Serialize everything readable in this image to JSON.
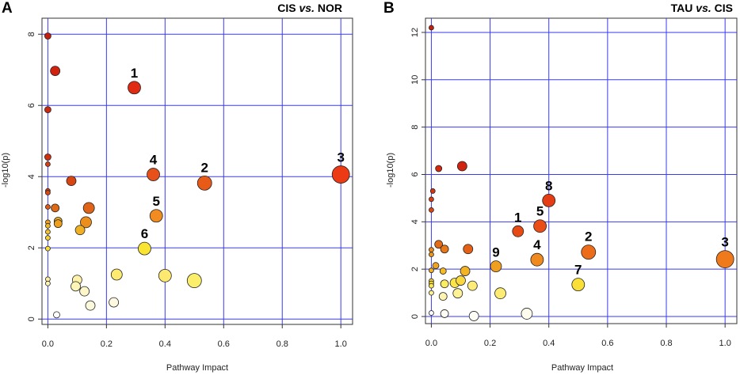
{
  "chart_data": [
    {
      "type": "scatter",
      "panel": "A",
      "title": {
        "left": "CIS",
        "mid": "vs.",
        "right": "NOR"
      },
      "xlabel": "Pathway Impact",
      "ylabel": "-log10(p)",
      "xlim": [
        -0.02,
        1.04
      ],
      "ylim": [
        -0.15,
        8.45
      ],
      "xticks": [
        0.0,
        0.2,
        0.4,
        0.6,
        0.8,
        1.0
      ],
      "xtick_labels": [
        "0.0",
        "0.2",
        "0.4",
        "0.6",
        "0.8",
        "1.0"
      ],
      "yticks": [
        0,
        2,
        4,
        6,
        8
      ],
      "ytick_labels": [
        "0",
        "2",
        "4",
        "6",
        "8"
      ],
      "grid": true,
      "points": [
        {
          "x": 0.0,
          "y": 7.95,
          "size": 4,
          "color": "#c81e0e"
        },
        {
          "x": 0.025,
          "y": 6.97,
          "size": 6,
          "color": "#d1220f"
        },
        {
          "x": 0.0,
          "y": 5.88,
          "size": 4,
          "color": "#cc2a10"
        },
        {
          "x": 0.0,
          "y": 4.55,
          "size": 4,
          "color": "#d1300f"
        },
        {
          "x": 0.0,
          "y": 4.35,
          "size": 3,
          "color": "#d6400f"
        },
        {
          "x": 0.0,
          "y": 3.6,
          "size": 3,
          "color": "#d8440f"
        },
        {
          "x": 0.0,
          "y": 3.55,
          "size": 3,
          "color": "#d84a10"
        },
        {
          "x": 0.0,
          "y": 3.15,
          "size": 3,
          "color": "#e05a10"
        },
        {
          "x": 0.025,
          "y": 3.12,
          "size": 5,
          "color": "#e06a14"
        },
        {
          "x": 0.08,
          "y": 3.88,
          "size": 6,
          "color": "#d84412"
        },
        {
          "x": 0.14,
          "y": 3.12,
          "size": 7,
          "color": "#e06418"
        },
        {
          "x": 0.035,
          "y": 2.75,
          "size": 5,
          "color": "#f0b020"
        },
        {
          "x": 0.035,
          "y": 2.68,
          "size": 5,
          "color": "#eea01c"
        },
        {
          "x": 0.0,
          "y": 2.72,
          "size": 3,
          "color": "#eea01c"
        },
        {
          "x": 0.0,
          "y": 2.62,
          "size": 3,
          "color": "#f2b822"
        },
        {
          "x": 0.0,
          "y": 2.45,
          "size": 3,
          "color": "#f5c426"
        },
        {
          "x": 0.0,
          "y": 2.28,
          "size": 3,
          "color": "#f8d22a"
        },
        {
          "x": 0.0,
          "y": 1.98,
          "size": 3,
          "color": "#fae032"
        },
        {
          "x": 0.13,
          "y": 2.72,
          "size": 7,
          "color": "#eb8e1c"
        },
        {
          "x": 0.11,
          "y": 2.5,
          "size": 6,
          "color": "#f0b024"
        },
        {
          "x": 0.0,
          "y": 1.12,
          "size": 3,
          "color": "#fef0a0"
        },
        {
          "x": 0.0,
          "y": 1.0,
          "size": 3,
          "color": "#fef4b4"
        },
        {
          "x": 0.1,
          "y": 1.1,
          "size": 6,
          "color": "#fef2a8"
        },
        {
          "x": 0.095,
          "y": 0.92,
          "size": 6,
          "color": "#fdf4b8"
        },
        {
          "x": 0.125,
          "y": 0.78,
          "size": 6,
          "color": "#fdf6c8"
        },
        {
          "x": 0.145,
          "y": 0.38,
          "size": 6,
          "color": "#fcf8dc"
        },
        {
          "x": 0.03,
          "y": 0.12,
          "size": 4,
          "color": "#fefefe"
        },
        {
          "x": 0.225,
          "y": 0.47,
          "size": 6,
          "color": "#fdf9e0"
        },
        {
          "x": 0.235,
          "y": 1.25,
          "size": 7,
          "color": "#fdeb70"
        },
        {
          "x": 0.4,
          "y": 1.22,
          "size": 8,
          "color": "#fde870"
        },
        {
          "x": 0.5,
          "y": 1.08,
          "size": 9,
          "color": "#fbee6a"
        },
        {
          "x": 0.295,
          "y": 6.5,
          "size": 8,
          "color": "#e02a12",
          "label": "1"
        },
        {
          "x": 0.535,
          "y": 3.82,
          "size": 9,
          "color": "#e85a18",
          "label": "2"
        },
        {
          "x": 1.0,
          "y": 4.06,
          "size": 11,
          "color": "#ec3a14",
          "label": "3"
        },
        {
          "x": 0.36,
          "y": 4.06,
          "size": 8,
          "color": "#e8501a",
          "label": "4"
        },
        {
          "x": 0.37,
          "y": 2.9,
          "size": 8,
          "color": "#f28c20",
          "label": "5"
        },
        {
          "x": 0.33,
          "y": 1.98,
          "size": 8,
          "color": "#fae432",
          "label": "6"
        }
      ]
    },
    {
      "type": "scatter",
      "panel": "B",
      "title": {
        "left": "TAU",
        "mid": "vs.",
        "right": "CIS"
      },
      "xlabel": "Pathway Impact",
      "ylabel": "-log10(p)",
      "xlim": [
        -0.02,
        1.04
      ],
      "ylim": [
        -0.3,
        12.6
      ],
      "xticks": [
        0.0,
        0.2,
        0.4,
        0.6,
        0.8,
        1.0
      ],
      "xtick_labels": [
        "0.0",
        "0.2",
        "0.4",
        "0.6",
        "0.8",
        "1.0"
      ],
      "yticks": [
        0,
        2,
        4,
        6,
        8,
        10,
        12
      ],
      "ytick_labels": [
        "0",
        "2",
        "4",
        "6",
        "8",
        "10",
        "12"
      ],
      "grid": true,
      "points": [
        {
          "x": 0.0,
          "y": 12.2,
          "size": 3,
          "color": "#c81e0e"
        },
        {
          "x": 0.025,
          "y": 6.25,
          "size": 4,
          "color": "#d4280f"
        },
        {
          "x": 0.105,
          "y": 6.35,
          "size": 6,
          "color": "#d02410"
        },
        {
          "x": 0.005,
          "y": 5.3,
          "size": 3,
          "color": "#d8340f"
        },
        {
          "x": 0.0,
          "y": 4.95,
          "size": 3,
          "color": "#da3c10"
        },
        {
          "x": 0.0,
          "y": 4.5,
          "size": 3,
          "color": "#dc4410"
        },
        {
          "x": 0.025,
          "y": 3.05,
          "size": 5,
          "color": "#e46a16"
        },
        {
          "x": 0.045,
          "y": 2.85,
          "size": 5,
          "color": "#e87818"
        },
        {
          "x": 0.125,
          "y": 2.85,
          "size": 6,
          "color": "#e46016"
        },
        {
          "x": 0.0,
          "y": 2.82,
          "size": 3,
          "color": "#ea8a1a"
        },
        {
          "x": 0.0,
          "y": 2.62,
          "size": 3,
          "color": "#ec961c"
        },
        {
          "x": 0.015,
          "y": 2.15,
          "size": 4,
          "color": "#f0a41e"
        },
        {
          "x": 0.0,
          "y": 1.95,
          "size": 3,
          "color": "#f2b422"
        },
        {
          "x": 0.04,
          "y": 1.92,
          "size": 4,
          "color": "#f4bc24"
        },
        {
          "x": 0.115,
          "y": 1.92,
          "size": 6,
          "color": "#f2b424"
        },
        {
          "x": 0.0,
          "y": 1.5,
          "size": 3,
          "color": "#f8d630"
        },
        {
          "x": 0.0,
          "y": 1.4,
          "size": 3,
          "color": "#fae03a"
        },
        {
          "x": 0.0,
          "y": 1.3,
          "size": 3,
          "color": "#fbe84a"
        },
        {
          "x": 0.0,
          "y": 1.0,
          "size": 3,
          "color": "#fdf090"
        },
        {
          "x": 0.045,
          "y": 1.38,
          "size": 5,
          "color": "#fcec60"
        },
        {
          "x": 0.08,
          "y": 1.42,
          "size": 6,
          "color": "#fbe448"
        },
        {
          "x": 0.1,
          "y": 1.52,
          "size": 6,
          "color": "#fad840"
        },
        {
          "x": 0.14,
          "y": 1.3,
          "size": 6,
          "color": "#fcec78"
        },
        {
          "x": 0.09,
          "y": 0.98,
          "size": 6,
          "color": "#fdf296"
        },
        {
          "x": 0.04,
          "y": 0.85,
          "size": 5,
          "color": "#fdf4b0"
        },
        {
          "x": 0.235,
          "y": 0.98,
          "size": 7,
          "color": "#fcec74"
        },
        {
          "x": 0.0,
          "y": 0.15,
          "size": 3,
          "color": "#fefefe"
        },
        {
          "x": 0.045,
          "y": 0.12,
          "size": 5,
          "color": "#fefef4"
        },
        {
          "x": 0.145,
          "y": 0.02,
          "size": 6,
          "color": "#fefef6"
        },
        {
          "x": 0.325,
          "y": 0.12,
          "size": 7,
          "color": "#fefcec"
        },
        {
          "x": 0.295,
          "y": 3.6,
          "size": 7,
          "color": "#e84a16",
          "label": "1"
        },
        {
          "x": 0.535,
          "y": 2.72,
          "size": 9,
          "color": "#ec6c1a",
          "label": "2"
        },
        {
          "x": 1.0,
          "y": 2.42,
          "size": 11,
          "color": "#ee7a1c",
          "label": "3"
        },
        {
          "x": 0.36,
          "y": 2.4,
          "size": 8,
          "color": "#f08a1e",
          "label": "4"
        },
        {
          "x": 0.37,
          "y": 3.82,
          "size": 8,
          "color": "#ea4e16",
          "label": "5"
        },
        {
          "x": 0.5,
          "y": 1.35,
          "size": 8,
          "color": "#fae036",
          "label": "7"
        },
        {
          "x": 0.4,
          "y": 4.9,
          "size": 8,
          "color": "#e43c14",
          "label": "8"
        },
        {
          "x": 0.22,
          "y": 2.12,
          "size": 7,
          "color": "#f0a020",
          "label": "9"
        }
      ]
    }
  ]
}
